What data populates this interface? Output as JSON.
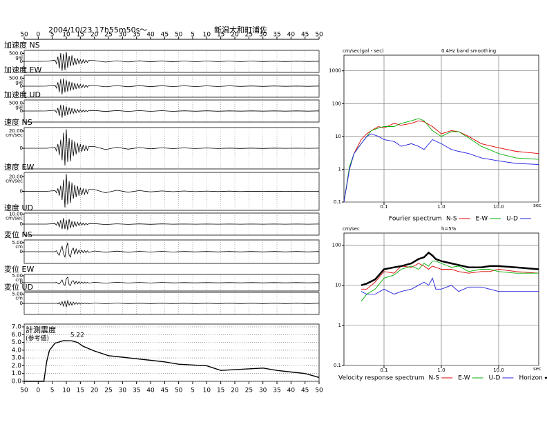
{
  "chart_data": [
    {
      "type": "waveform",
      "title": "2004/10/23 17h55m50s～",
      "subtitle": "新潟大和町浦佐",
      "xlim": [
        -5,
        100
      ],
      "xticks": [
        {
          "value": -5,
          "label": "50"
        },
        0,
        5,
        10,
        15,
        20,
        25,
        30,
        35,
        40,
        45,
        50,
        {
          "value": 55,
          "label": "5"
        },
        {
          "value": 60,
          "label": "10"
        },
        {
          "value": 65,
          "label": "15"
        },
        {
          "value": 70,
          "label": "20"
        },
        {
          "value": 75,
          "label": "25"
        },
        {
          "value": 80,
          "label": "30"
        },
        {
          "value": 85,
          "label": "35"
        },
        {
          "value": 90,
          "label": "40"
        },
        {
          "value": 95,
          "label": "45"
        },
        {
          "value": 100,
          "label": "50"
        }
      ],
      "x": [
        -5,
        0,
        3,
        6,
        6.5,
        7,
        7.5,
        8,
        8.5,
        9,
        9.5,
        10,
        10.5,
        11,
        11.5,
        12,
        12.5,
        13,
        13.5,
        14,
        14.5,
        15,
        15.5,
        16,
        16.5,
        17,
        17.5,
        18,
        20,
        24,
        28,
        32,
        36,
        40,
        44,
        48,
        52,
        56,
        60,
        64,
        68,
        72,
        76,
        80,
        84,
        88,
        92,
        96,
        100
      ],
      "traces": [
        {
          "name": "加速度 NS",
          "unit": "gal",
          "color": "#000",
          "ylim": [
            -700,
            700
          ],
          "yticks": [
            {
              "value": 500,
              "label": "500.0"
            },
            0
          ],
          "values": [
            0,
            0,
            5,
            80,
            -150,
            300,
            -450,
            520,
            -600,
            480,
            -550,
            600,
            -420,
            350,
            -300,
            380,
            -250,
            220,
            -200,
            180,
            -150,
            120,
            -140,
            100,
            -90,
            80,
            -70,
            60,
            50,
            -45,
            40,
            -40,
            35,
            -30,
            30,
            -30,
            25,
            -25,
            25,
            -20,
            20,
            -20,
            20,
            -15,
            15,
            -15,
            15,
            -10,
            10
          ]
        },
        {
          "name": "加速度 EW",
          "unit": "gal",
          "color": "#000",
          "ylim": [
            -700,
            700
          ],
          "yticks": [
            {
              "value": 500,
              "label": "500.0"
            },
            0
          ],
          "values": [
            0,
            0,
            5,
            60,
            -120,
            250,
            -380,
            450,
            -520,
            500,
            -400,
            380,
            -350,
            300,
            -280,
            250,
            -220,
            200,
            -180,
            150,
            -130,
            120,
            -110,
            90,
            -80,
            70,
            -60,
            50,
            45,
            -40,
            40,
            -35,
            35,
            -30,
            30,
            -25,
            25,
            -25,
            20,
            -20,
            20,
            -15,
            15,
            -15,
            15,
            -10,
            10,
            -10,
            10
          ]
        },
        {
          "name": "加速度 UD",
          "unit": "gal",
          "color": "#000",
          "ylim": [
            -700,
            700
          ],
          "yticks": [
            {
              "value": 500,
              "label": "500.0"
            },
            0
          ],
          "values": [
            0,
            0,
            5,
            50,
            -100,
            200,
            -300,
            400,
            -420,
            380,
            -300,
            280,
            -260,
            220,
            -200,
            180,
            -150,
            130,
            -110,
            100,
            -90,
            80,
            -70,
            60,
            -50,
            40,
            -35,
            30,
            35,
            -30,
            30,
            -25,
            25,
            -20,
            20,
            -20,
            15,
            -15,
            15,
            -15,
            10,
            -10,
            10,
            -10,
            10,
            -8,
            8,
            -8,
            8
          ]
        },
        {
          "name": "速度 NS",
          "unit": "cm/sec",
          "color": "#000",
          "ylim": [
            -24,
            24
          ],
          "yticks": [
            {
              "value": 20,
              "label": "20.00"
            },
            0
          ],
          "values": [
            0,
            0,
            0,
            1,
            -3,
            5,
            -8,
            10,
            -14,
            18,
            -20,
            22,
            -16,
            12,
            -15,
            10,
            -9,
            8,
            -7,
            6,
            -5,
            5,
            -4,
            4,
            -3,
            3,
            -2.5,
            2,
            2,
            -1.5,
            1.2,
            -1,
            0.8,
            -0.6,
            0.5,
            -0.4,
            0.4,
            -0.3,
            0.3,
            -0.3,
            0.2,
            -0.2,
            0.2,
            -0.2,
            0.2,
            -0.1,
            0.1,
            -0.1,
            0.1
          ]
        },
        {
          "name": "速度 EW",
          "unit": "cm/sec",
          "color": "#000",
          "ylim": [
            -26,
            26
          ],
          "yticks": [
            {
              "value": 20,
              "label": "20.00"
            },
            0
          ],
          "values": [
            0,
            0,
            0,
            1,
            -2,
            4,
            -6,
            8,
            -12,
            16,
            -22,
            24,
            -18,
            14,
            -16,
            12,
            -10,
            9,
            -8,
            7,
            -6,
            5,
            -5,
            4,
            -4,
            3,
            -3,
            2.5,
            2.5,
            -2,
            1.5,
            -1.2,
            1,
            -0.8,
            0.6,
            -0.5,
            0.5,
            -0.4,
            0.4,
            -0.3,
            0.3,
            -0.3,
            0.2,
            -0.2,
            0.2,
            -0.2,
            0.1,
            -0.1,
            0.1
          ]
        },
        {
          "name": "速度 UD",
          "unit": "cm/sec",
          "color": "#000",
          "ylim": [
            -11,
            11
          ],
          "yticks": [
            {
              "value": 10,
              "label": "10.00"
            },
            0
          ],
          "values": [
            0,
            0,
            0,
            0.5,
            -1,
            2,
            -3,
            4,
            -5,
            6,
            -5,
            4,
            -6,
            5,
            -4,
            3,
            -3,
            2.5,
            -2,
            2,
            -1.5,
            1.5,
            -1,
            1,
            -0.8,
            0.8,
            -0.6,
            0.5,
            0.5,
            -0.4,
            0.3,
            -0.3,
            0.2,
            -0.2,
            0.2,
            -0.1,
            0.1,
            -0.1,
            0.1,
            -0.1,
            0.1,
            -0.1,
            0.1,
            -0.1,
            0.1,
            -0.1,
            0.1,
            -0.1,
            0.1
          ]
        },
        {
          "name": "変位 NS",
          "unit": "cm",
          "color": "#000",
          "ylim": [
            -6.5,
            6.5
          ],
          "yticks": [
            {
              "value": 5,
              "label": "5.00"
            },
            0
          ],
          "values": [
            0,
            0,
            0,
            0,
            0.5,
            -1,
            -2,
            1,
            3,
            -1,
            -3,
            2,
            5,
            -2,
            -3,
            1,
            2,
            -1.5,
            1.5,
            -1,
            1,
            -0.8,
            0.8,
            -0.6,
            0.6,
            -0.5,
            0.5,
            -0.4,
            0.4,
            -0.3,
            0.3,
            -0.3,
            0.2,
            -0.2,
            0.2,
            -0.2,
            0.1,
            -0.1,
            0.1,
            -0.1,
            0.1,
            -0.1,
            0.1,
            -0.1,
            0.1,
            -0.1,
            0.1,
            -0.1,
            0.1
          ]
        },
        {
          "name": "変位 EW",
          "unit": "cm",
          "color": "#000",
          "ylim": [
            -6,
            6
          ],
          "yticks": [
            {
              "value": 5,
              "label": "5.00"
            },
            0
          ],
          "values": [
            0,
            0,
            0,
            0,
            0.3,
            -0.5,
            -1,
            0.5,
            2,
            -1,
            -2,
            3,
            4,
            -1.5,
            -2,
            1,
            1.5,
            -1,
            1,
            -0.8,
            0.8,
            -0.6,
            0.6,
            -0.5,
            0.5,
            -0.4,
            0.4,
            -0.3,
            0.3,
            -0.3,
            0.3,
            -0.2,
            0.2,
            -0.2,
            0.2,
            -0.1,
            0.1,
            -0.1,
            0.1,
            -0.1,
            0.1,
            -0.1,
            0.1,
            -0.1,
            0.1,
            -0.1,
            0.1,
            -0.1,
            0.1
          ]
        },
        {
          "name": "変位 UD",
          "unit": "cm",
          "color": "#000",
          "ylim": [
            -6,
            6
          ],
          "yticks": [
            {
              "value": 5,
              "label": "5.00"
            },
            0
          ],
          "values": [
            0,
            0,
            0,
            0,
            0.2,
            -0.3,
            0.5,
            -0.8,
            1,
            -1.5,
            1.2,
            -2,
            1.5,
            -1,
            0.8,
            -1,
            0.7,
            -0.6,
            0.5,
            -0.5,
            0.4,
            -0.4,
            0.3,
            -0.3,
            0.3,
            -0.2,
            0.2,
            -0.2,
            0.2,
            -0.2,
            0.2,
            -0.1,
            0.1,
            -0.1,
            0.1,
            -0.1,
            0.1,
            -0.1,
            0.1,
            -0.1,
            0.1,
            -0.1,
            0.1,
            -0.1,
            0.1,
            -0.1,
            0.1,
            -0.1,
            0.1
          ]
        }
      ]
    },
    {
      "type": "line",
      "title": "計測震度",
      "subtitle": "(参考値)",
      "grid": "y",
      "color": "#000",
      "xlim": [
        -5,
        100
      ],
      "xticks": [
        {
          "value": -5,
          "label": "50"
        },
        0,
        5,
        10,
        15,
        20,
        25,
        30,
        35,
        40,
        45,
        50,
        {
          "value": 55,
          "label": "5"
        },
        {
          "value": 60,
          "label": "10"
        },
        {
          "value": 65,
          "label": "15"
        },
        {
          "value": 70,
          "label": "20"
        },
        {
          "value": 75,
          "label": "25"
        },
        {
          "value": 80,
          "label": "30"
        },
        {
          "value": 85,
          "label": "35"
        },
        {
          "value": 90,
          "label": "40"
        },
        {
          "value": 95,
          "label": "45"
        },
        {
          "value": 100,
          "label": "50"
        }
      ],
      "ylim": [
        0,
        7
      ],
      "yticks": [
        {
          "value": 0,
          "label": "0.0"
        },
        {
          "value": 1,
          "label": "1.0"
        },
        {
          "value": 2,
          "label": "2.0"
        },
        {
          "value": 3,
          "label": "3.0"
        },
        {
          "value": 4,
          "label": "4.0"
        },
        {
          "value": 5,
          "label": "5.0"
        },
        {
          "value": 6,
          "label": "6.0"
        },
        {
          "value": 7,
          "label": "7.0"
        }
      ],
      "x": [
        -5,
        0,
        2,
        3,
        4,
        6,
        9,
        12,
        14,
        16,
        20,
        25,
        30,
        35,
        40,
        45,
        50,
        55,
        60,
        65,
        70,
        75,
        80,
        85,
        90,
        95,
        98,
        100
      ],
      "values": [
        0,
        0,
        0,
        2.5,
        4,
        4.9,
        5.22,
        5.2,
        5,
        4.5,
        3.9,
        3.3,
        3.1,
        2.9,
        2.7,
        2.5,
        2.2,
        2.1,
        2,
        1.4,
        1.5,
        1.6,
        1.7,
        1.4,
        1.2,
        1,
        0.7,
        0.5
      ],
      "value_labels": [
        null,
        null,
        null,
        null,
        null,
        null,
        "5.22",
        null,
        null,
        null,
        null,
        null,
        null,
        null,
        null,
        null,
        null,
        null,
        null,
        null,
        null,
        null,
        null,
        null,
        null,
        null,
        null,
        null
      ]
    },
    {
      "type": "line",
      "title": "Fourier spectrum",
      "subtitle": "0.4Hz band smoothing",
      "ylabel": "cm/sec(gal・sec)",
      "xlabel": "sec",
      "xscale": "log",
      "yscale": "log",
      "grid": true,
      "xlim": [
        0.02,
        50
      ],
      "xticks": [
        0.1,
        {
          "value": 1,
          "label": "1.0"
        },
        {
          "value": 10,
          "label": "10.0"
        }
      ],
      "ylim": [
        0.1,
        3000
      ],
      "yticks": [
        0.1,
        1,
        10,
        100,
        1000
      ],
      "x": [
        0.02,
        0.025,
        0.03,
        0.04,
        0.05,
        0.06,
        0.08,
        0.1,
        0.15,
        0.2,
        0.3,
        0.4,
        0.5,
        0.7,
        1,
        1.5,
        2,
        3,
        5,
        10,
        20,
        50
      ],
      "series": [
        {
          "name": "N-S",
          "color": "#e00000",
          "values": [
            0.1,
            1,
            3,
            8,
            12,
            15,
            20,
            18,
            25,
            22,
            25,
            30,
            28,
            20,
            12,
            15,
            14,
            10,
            6,
            4.5,
            3.5,
            3
          ]
        },
        {
          "name": "E-W",
          "color": "#00b000",
          "values": [
            0.1,
            1.2,
            3,
            6,
            10,
            15,
            18,
            20,
            20,
            25,
            30,
            35,
            30,
            15,
            10,
            14,
            14,
            9,
            5,
            3,
            2.2,
            2
          ]
        },
        {
          "name": "U-D",
          "color": "#2020e0",
          "values": [
            0.1,
            1,
            3,
            6,
            10,
            12,
            10,
            8,
            7,
            5,
            6,
            5,
            4,
            8,
            6,
            4,
            3.5,
            3,
            2.2,
            1.8,
            1.5,
            1.4
          ]
        }
      ]
    },
    {
      "type": "line",
      "title": "Velocity response spectrum",
      "subtitle": "h=5%",
      "ylabel": "cm/sec",
      "xlabel": "sec",
      "xscale": "log",
      "yscale": "log",
      "grid": true,
      "xlim": [
        0.02,
        50
      ],
      "xticks": [
        0.1,
        {
          "value": 1,
          "label": "1.0"
        },
        {
          "value": 10,
          "label": "10.0"
        }
      ],
      "ylim": [
        0.1,
        200
      ],
      "yticks": [
        0.1,
        1,
        10,
        100
      ],
      "x": [
        0.04,
        0.05,
        0.07,
        0.1,
        0.15,
        0.2,
        0.3,
        0.4,
        0.5,
        0.6,
        0.7,
        0.8,
        1,
        1.5,
        2,
        3,
        5,
        7,
        10,
        20,
        50
      ],
      "series": [
        {
          "name": "N-S",
          "color": "#e00000",
          "values": [
            8,
            8,
            12,
            22,
            20,
            30,
            28,
            35,
            30,
            25,
            30,
            28,
            25,
            25,
            22,
            20,
            22,
            22,
            25,
            22,
            20
          ]
        },
        {
          "name": "E-W",
          "color": "#00b000",
          "values": [
            4,
            6,
            8,
            15,
            18,
            25,
            30,
            25,
            35,
            30,
            40,
            40,
            35,
            28,
            30,
            22,
            25,
            25,
            22,
            20,
            20
          ]
        },
        {
          "name": "U-D",
          "color": "#2020e0",
          "values": [
            7,
            6,
            6,
            8,
            6,
            7,
            8,
            10,
            12,
            10,
            15,
            8,
            8,
            10,
            7,
            9,
            9,
            8,
            7,
            7,
            7
          ]
        },
        {
          "name": "Horizon",
          "color": "#000000",
          "style": "bold",
          "values": [
            10,
            11,
            14,
            25,
            28,
            30,
            35,
            45,
            50,
            65,
            55,
            45,
            40,
            35,
            32,
            28,
            28,
            30,
            30,
            28,
            25
          ]
        }
      ]
    }
  ]
}
